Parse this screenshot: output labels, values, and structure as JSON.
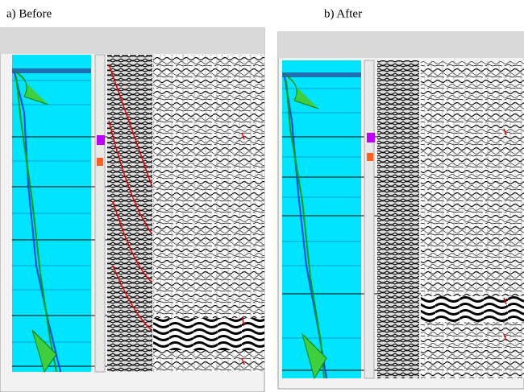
{
  "panels": [
    {
      "caption": "a) Before"
    },
    {
      "caption": "b) After"
    }
  ]
}
